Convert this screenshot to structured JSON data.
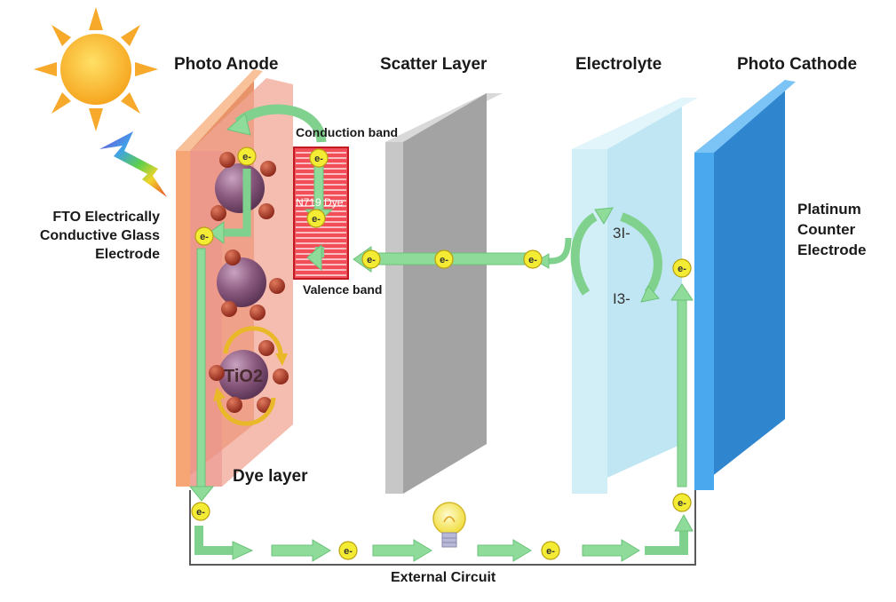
{
  "labels": {
    "photo_anode": "Photo Anode",
    "scatter_layer": "Scatter Layer",
    "electrolyte": "Electrolyte",
    "photo_cathode": "Photo Cathode",
    "fto": [
      "FTO Electrically",
      "Conductive Glass",
      "Electrode"
    ],
    "platinum": [
      "Platinum",
      "Counter",
      "Electrode"
    ],
    "conduction_band": "Conduction band",
    "valence_band": "Valence band",
    "dye": "N719 Dye",
    "tio2": "TiO2",
    "dye_layer": "Dye layer",
    "external_circuit": "External Circuit",
    "triiodide_species": "3I-",
    "iodide_species": "I3-",
    "electron": "e-"
  },
  "colors": {
    "fto_glass": "#f0a070",
    "dye_layer": "#f3b0a0",
    "dye_box": "#ee2f3a",
    "scatter": "#b0b0b0",
    "electrolyte": "#bfe6f2",
    "cathode": "#3f9be0",
    "arrow": "#8fdc9a",
    "electron": "#f4ec34",
    "sun": "#f7b733"
  },
  "icons": [
    "sun-icon",
    "light-bolt-icon",
    "light-bulb-icon"
  ]
}
